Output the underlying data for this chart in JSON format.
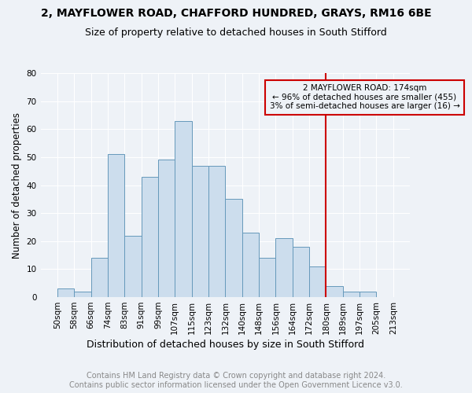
{
  "title1": "2, MAYFLOWER ROAD, CHAFFORD HUNDRED, GRAYS, RM16 6BE",
  "title2": "Size of property relative to detached houses in South Stifford",
  "xlabel": "Distribution of detached houses by size in South Stifford",
  "ylabel": "Number of detached properties",
  "footnote1": "Contains HM Land Registry data © Crown copyright and database right 2024.",
  "footnote2": "Contains public sector information licensed under the Open Government Licence v3.0.",
  "bar_labels": [
    "50sqm",
    "58sqm",
    "66sqm",
    "74sqm",
    "83sqm",
    "91sqm",
    "99sqm",
    "107sqm",
    "115sqm",
    "123sqm",
    "132sqm",
    "140sqm",
    "148sqm",
    "156sqm",
    "164sqm",
    "172sqm",
    "180sqm",
    "189sqm",
    "197sqm",
    "205sqm",
    "213sqm"
  ],
  "bar_values": [
    3,
    2,
    14,
    51,
    22,
    43,
    49,
    63,
    47,
    47,
    35,
    23,
    14,
    21,
    18,
    11,
    4,
    2,
    2,
    0
  ],
  "bar_color": "#ccdded",
  "bar_edge_color": "#6699bb",
  "vline_color": "#cc0000",
  "annotation_text": "2 MAYFLOWER ROAD: 174sqm\n← 96% of detached houses are smaller (455)\n3% of semi-detached houses are larger (16) →",
  "annotation_box_color": "#cc0000",
  "ylim": [
    0,
    80
  ],
  "yticks": [
    0,
    10,
    20,
    30,
    40,
    50,
    60,
    70,
    80
  ],
  "background_color": "#eef2f7",
  "grid_color": "#ffffff",
  "title1_fontsize": 10,
  "title2_fontsize": 9,
  "xlabel_fontsize": 9,
  "ylabel_fontsize": 8.5,
  "tick_fontsize": 7.5,
  "annot_fontsize": 7.5,
  "footnote_fontsize": 7
}
